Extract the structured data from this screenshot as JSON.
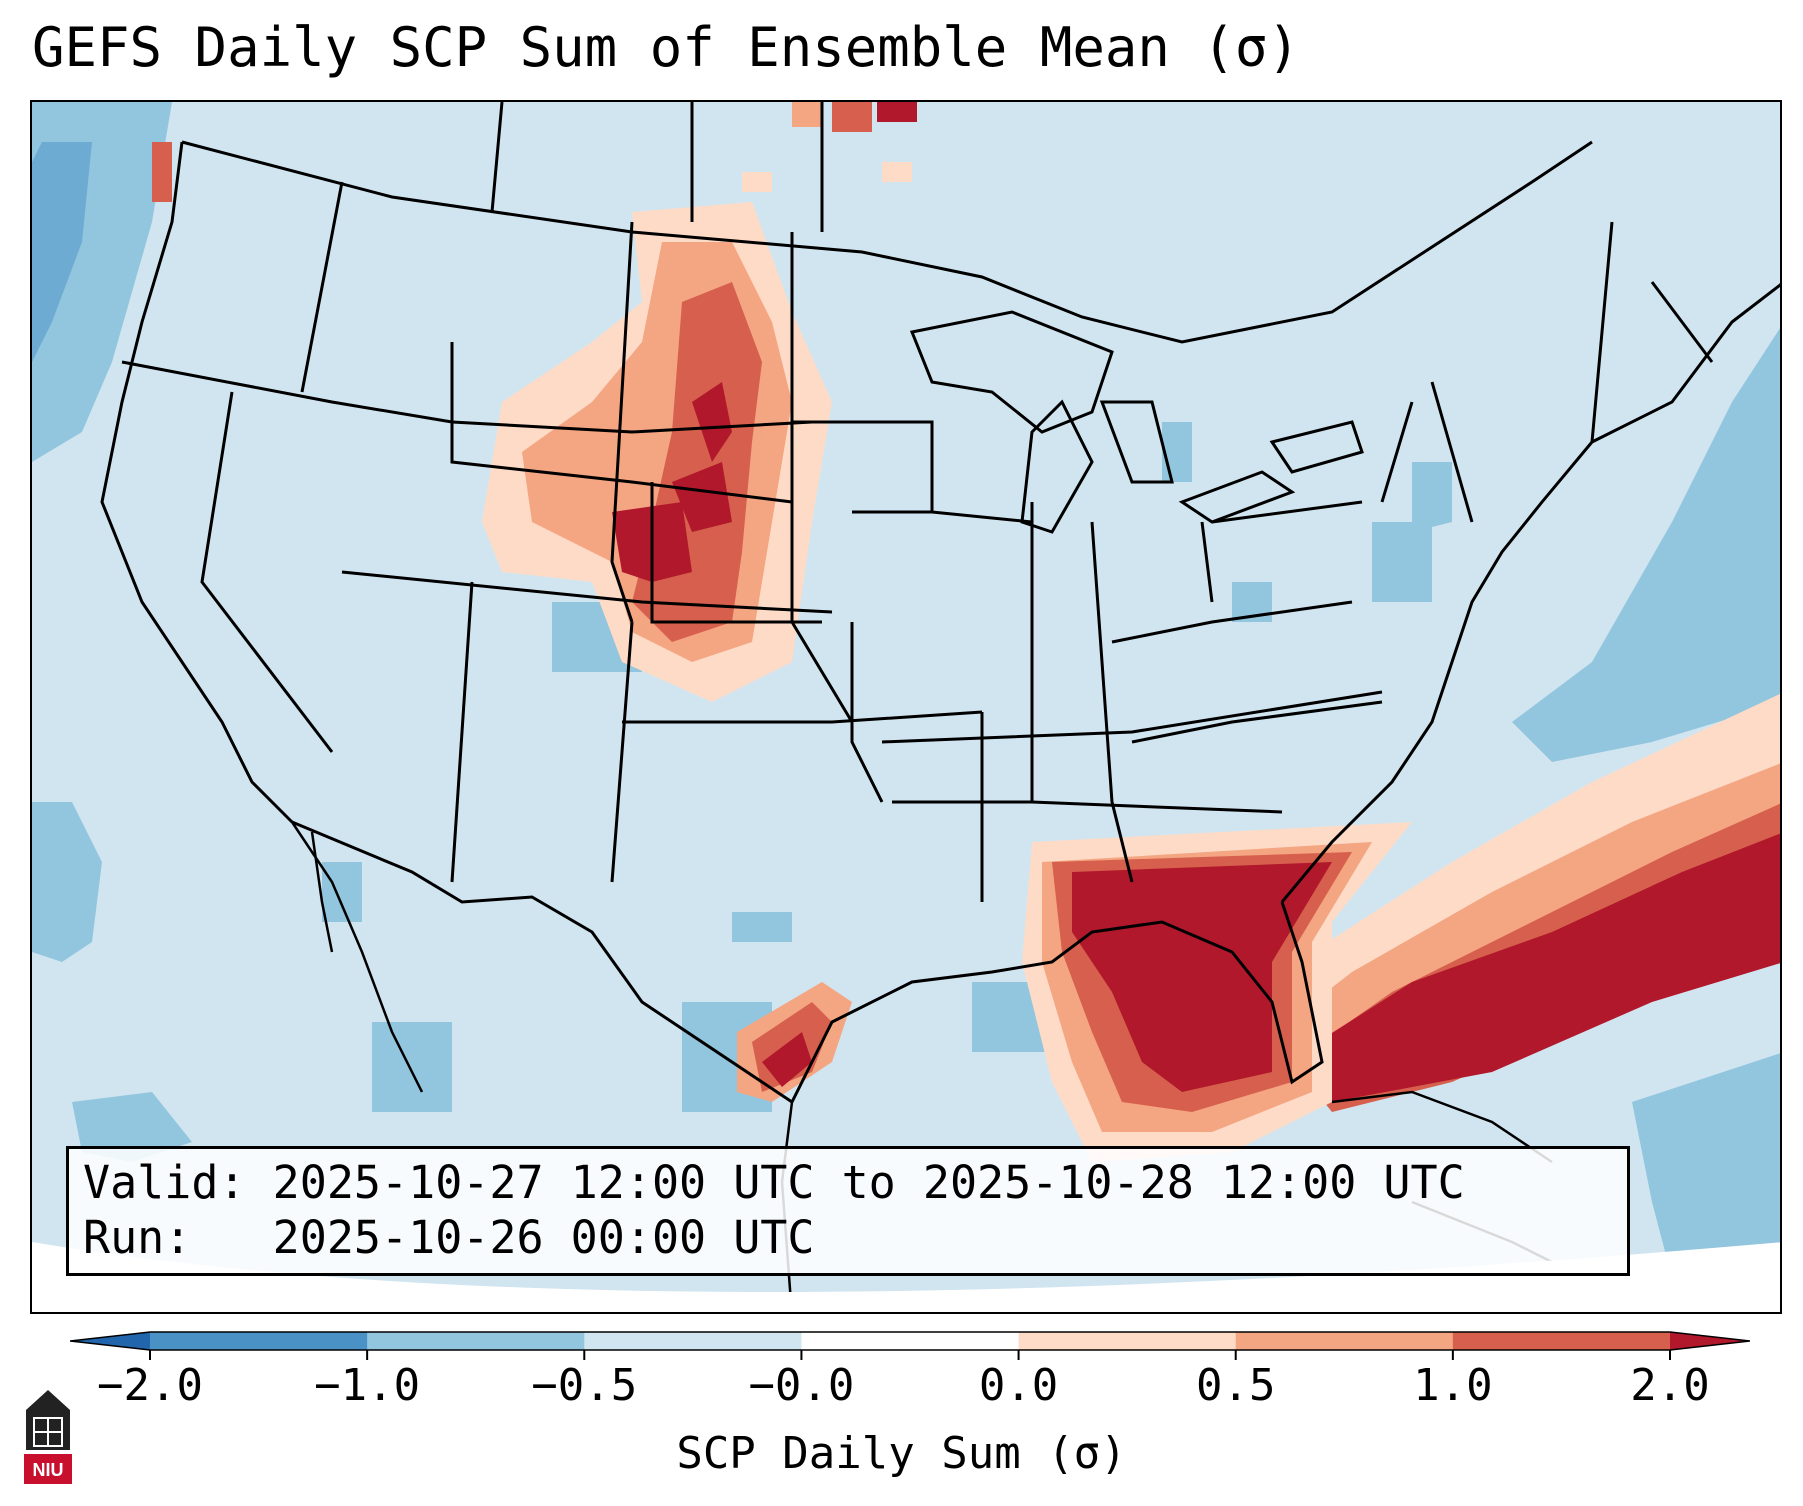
{
  "title": "GEFS Daily SCP Sum of Ensemble Mean (σ)",
  "map": {
    "description_regions": "CONUS map with SCP anomaly shading",
    "colors": {
      "ocean_fill": "#cfe4ef",
      "neg_strong": "#4a91c6",
      "neg_mid": "#92c5de",
      "neutral_neg": "#d1e5f0",
      "neutral_pos": "#fddbc7",
      "pos_mid": "#f4a582",
      "pos_high": "#d6604d",
      "pos_strong": "#b2182b",
      "border": "#000000"
    }
  },
  "info": {
    "valid_line": "Valid: 2025-10-27 12:00 UTC to 2025-10-28 12:00 UTC",
    "run_line": "Run:   2025-10-26 00:00 UTC"
  },
  "colorbar": {
    "label": "SCP Daily Sum (σ)",
    "ticks": [
      "−2.0",
      "−1.0",
      "−0.5",
      "−0.0",
      "0.0",
      "0.5",
      "1.0",
      "2.0"
    ],
    "bins": [
      {
        "from": -2.0,
        "to": -1.0,
        "color": "#4a91c6"
      },
      {
        "from": -1.0,
        "to": -0.5,
        "color": "#92c5de"
      },
      {
        "from": -0.5,
        "to": -0.0,
        "color": "#d1e5f0"
      },
      {
        "from": -0.0,
        "to": 0.0,
        "color": "#ffffff"
      },
      {
        "from": 0.0,
        "to": 0.5,
        "color": "#fddbc7"
      },
      {
        "from": 0.5,
        "to": 1.0,
        "color": "#f4a582"
      },
      {
        "from": 1.0,
        "to": 2.0,
        "color": "#d6604d"
      }
    ],
    "under_color": "#2166ac",
    "over_color": "#b2182b"
  },
  "logo": {
    "text": "NIU",
    "color": "#c8102e"
  }
}
